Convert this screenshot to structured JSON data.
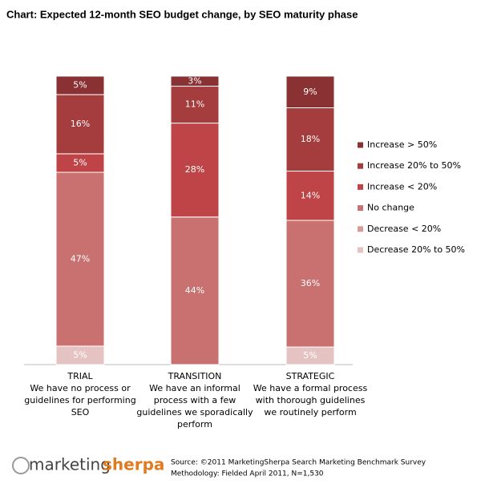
{
  "chart_data": {
    "type": "stacked_bar_100",
    "title": "Chart: Expected 12-month SEO budget change, by SEO maturity phase",
    "categories": [
      [
        "TRIAL",
        "We have no process or",
        "guidelines for performing",
        "SEO"
      ],
      [
        "TRANSITION",
        "We have an informal",
        "process with a few",
        "guidelines we sporadically",
        "perform"
      ],
      [
        "STRATEGIC",
        "We have a formal process",
        "with thorough guidelines",
        "we routinely perform"
      ]
    ],
    "series": [
      {
        "name": "Decrease 20% to 50%",
        "color": "#e6c3c3",
        "values": [
          5,
          null,
          5
        ],
        "value_labels": [
          "5%",
          null,
          "5%"
        ]
      },
      {
        "name": "Decrease < 20%",
        "color": "#d99a9a",
        "values": [
          null,
          null,
          null
        ],
        "value_labels": [
          null,
          null,
          null
        ]
      },
      {
        "name": "No change",
        "color": "#c97171",
        "values": [
          47,
          44,
          36
        ],
        "value_labels": [
          "47%",
          "44%",
          "36%"
        ]
      },
      {
        "name": "Increase < 20%",
        "color": "#bf4447",
        "values": [
          5,
          28,
          14
        ],
        "value_labels": [
          "5%",
          "28%",
          "14%"
        ]
      },
      {
        "name": "Increase 20% to 50%",
        "color": "#a53c3d",
        "values": [
          16,
          11,
          18
        ],
        "value_labels": [
          "16%",
          "11%",
          "18%"
        ]
      },
      {
        "name": "Increase > 50%",
        "color": "#8a3133",
        "values": [
          5,
          3,
          9
        ],
        "value_labels": [
          "5%",
          "3%",
          "9%"
        ]
      }
    ]
  },
  "footer": {
    "logo_left": "marketing",
    "logo_right": "sherpa",
    "source": [
      "Source: ©2011 MarketingSherpa Search Marketing Benchmark Survey",
      "Methodology: Fielded April 2011, N=1,530"
    ]
  }
}
